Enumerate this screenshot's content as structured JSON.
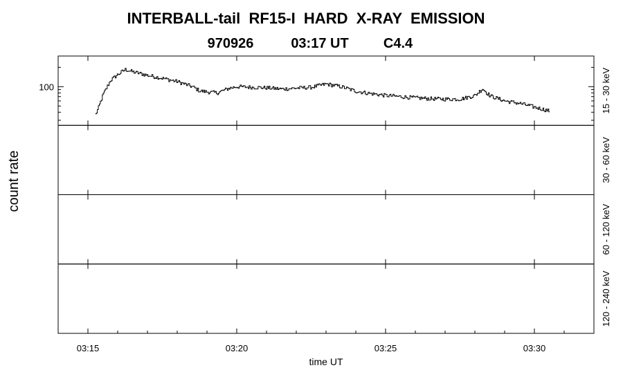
{
  "chart_data": {
    "type": "line",
    "title": "INTERBALL-tail  RF15-I  HARD  X-RAY  EMISSION",
    "subtitle": {
      "date": "970926",
      "time": "03:17 UT",
      "class": "C4.4"
    },
    "xlabel": "time UT",
    "ylabel": "count rate",
    "xlim": [
      "03:14:00",
      "03:32:00"
    ],
    "x_ticks": [
      "03:15",
      "03:20",
      "03:25",
      "03:30"
    ],
    "y_scale": "log",
    "panels": [
      {
        "channel": "15 - 30 keV",
        "ylim": [
          25,
          300
        ],
        "y_ticks": [
          100
        ],
        "x": [
          "03:15:15",
          "03:15:20",
          "03:15:30",
          "03:15:45",
          "03:16:00",
          "03:16:15",
          "03:16:30",
          "03:16:45",
          "03:17:00",
          "03:17:30",
          "03:18:00",
          "03:18:30",
          "03:18:45",
          "03:19:00",
          "03:19:20",
          "03:19:45",
          "03:20:00",
          "03:20:30",
          "03:21:00",
          "03:21:30",
          "03:22:00",
          "03:22:30",
          "03:23:00",
          "03:23:30",
          "03:24:00",
          "03:24:30",
          "03:25:00",
          "03:25:30",
          "03:26:00",
          "03:26:30",
          "03:27:00",
          "03:27:30",
          "03:28:00",
          "03:28:15",
          "03:28:30",
          "03:29:00",
          "03:29:30",
          "03:30:00",
          "03:30:30"
        ],
        "y": [
          37,
          45,
          75,
          125,
          155,
          185,
          170,
          160,
          150,
          135,
          120,
          100,
          86,
          83,
          80,
          95,
          100,
          98,
          96,
          92,
          95,
          98,
          110,
          100,
          85,
          78,
          73,
          70,
          67,
          65,
          64,
          64,
          73,
          93,
          72,
          60,
          55,
          48,
          42
        ]
      },
      {
        "channel": "30 - 60 keV"
      },
      {
        "channel": "60 - 120 keV"
      },
      {
        "channel": "120 - 240 keV"
      }
    ],
    "grid": false
  }
}
